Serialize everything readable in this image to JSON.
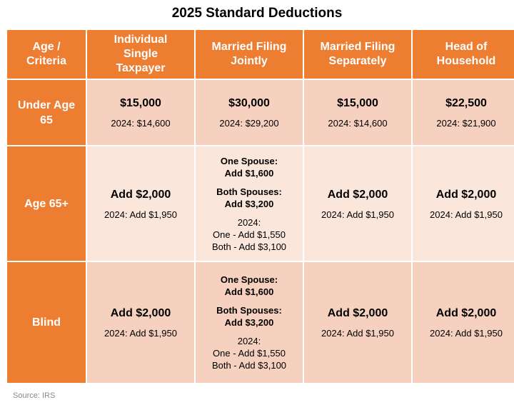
{
  "header": {
    "title": "2025 Standard Deductions"
  },
  "table": {
    "columns": [
      [
        "Age /",
        "Criteria"
      ],
      [
        "Individual",
        "Single",
        "Taxpayer"
      ],
      [
        "Married Filing",
        "Jointly"
      ],
      [
        "Married Filing",
        "Separately"
      ],
      [
        "Head of",
        "Household"
      ]
    ],
    "rows": [
      {
        "label": [
          "Under Age",
          "65"
        ],
        "cells": [
          {
            "amount": "$15,000",
            "prior": [
              "2024: $14,600"
            ]
          },
          {
            "amount": "$30,000",
            "prior": [
              "2024: $29,200"
            ]
          },
          {
            "amount": "$15,000",
            "prior": [
              "2024: $14,600"
            ]
          },
          {
            "amount": "$22,500",
            "prior": [
              "2024: $21,900"
            ]
          }
        ]
      },
      {
        "label": [
          "Age 65+"
        ],
        "cells": [
          {
            "amount": "Add $2,000",
            "prior": [
              "2024: Add $1,950"
            ]
          },
          {
            "one_spouse": [
              "One Spouse:",
              "Add $1,600"
            ],
            "both_spouses": [
              "Both Spouses:",
              "Add $3,200"
            ],
            "prior": [
              "2024:",
              "One - Add $1,550",
              "Both - Add $3,100"
            ]
          },
          {
            "amount": "Add $2,000",
            "prior": [
              "2024: Add $1,950"
            ]
          },
          {
            "amount": "Add $2,000",
            "prior": [
              "2024: Add $1,950"
            ]
          }
        ]
      },
      {
        "label": [
          "Blind"
        ],
        "cells": [
          {
            "amount": "Add $2,000",
            "prior": [
              "2024: Add $1,950"
            ]
          },
          {
            "one_spouse": [
              "One Spouse:",
              "Add $1,600"
            ],
            "both_spouses": [
              "Both Spouses:",
              "Add $3,200"
            ],
            "prior": [
              "2024:",
              "One - Add $1,550",
              "Both - Add $3,100"
            ]
          },
          {
            "amount": "Add $2,000",
            "prior": [
              "2024: Add $1,950"
            ]
          },
          {
            "amount": "Add $2,000",
            "prior": [
              "2024: Add $1,950"
            ]
          }
        ]
      }
    ]
  },
  "footer": {
    "source": "Source: IRS"
  }
}
